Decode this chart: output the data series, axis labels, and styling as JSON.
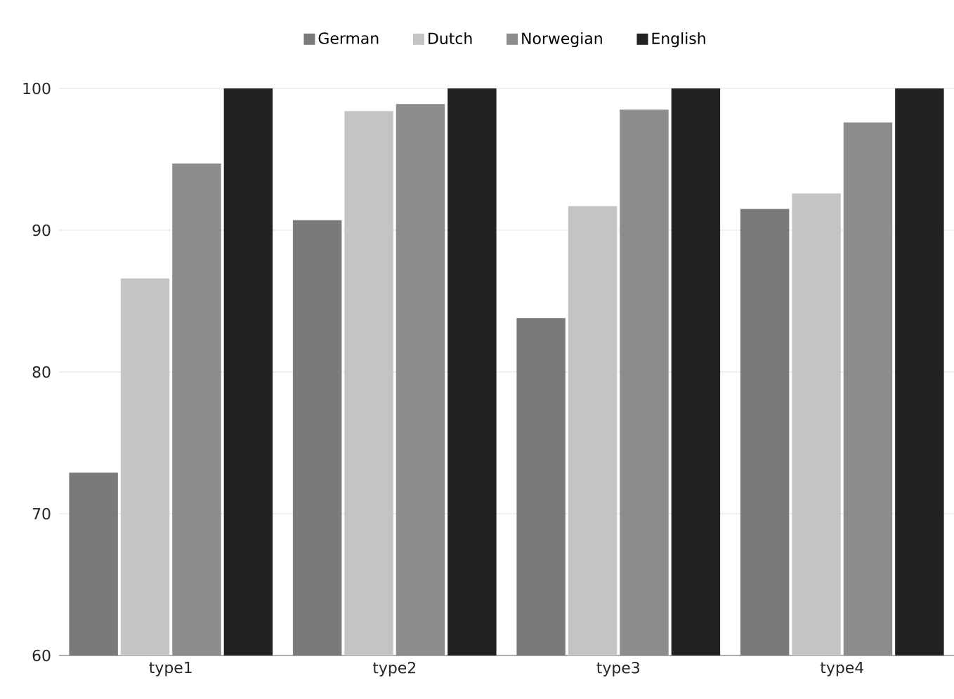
{
  "chart_data": {
    "type": "bar",
    "categories": [
      "type1",
      "type2",
      "type3",
      "type4"
    ],
    "series": [
      {
        "name": "German",
        "color": "#7a7a7a",
        "values": [
          72.9,
          90.7,
          83.8,
          91.5
        ]
      },
      {
        "name": "Dutch",
        "color": "#c4c4c4",
        "values": [
          86.6,
          98.4,
          91.7,
          92.6
        ]
      },
      {
        "name": "Norwegian",
        "color": "#8c8c8c",
        "values": [
          94.7,
          98.9,
          98.5,
          97.6
        ]
      },
      {
        "name": "English",
        "color": "#222222",
        "values": [
          100,
          100,
          100,
          100
        ]
      }
    ],
    "ylim": [
      60,
      100
    ],
    "yticks": [
      60,
      70,
      80,
      90,
      100
    ],
    "grid": "y",
    "legend": "top"
  }
}
